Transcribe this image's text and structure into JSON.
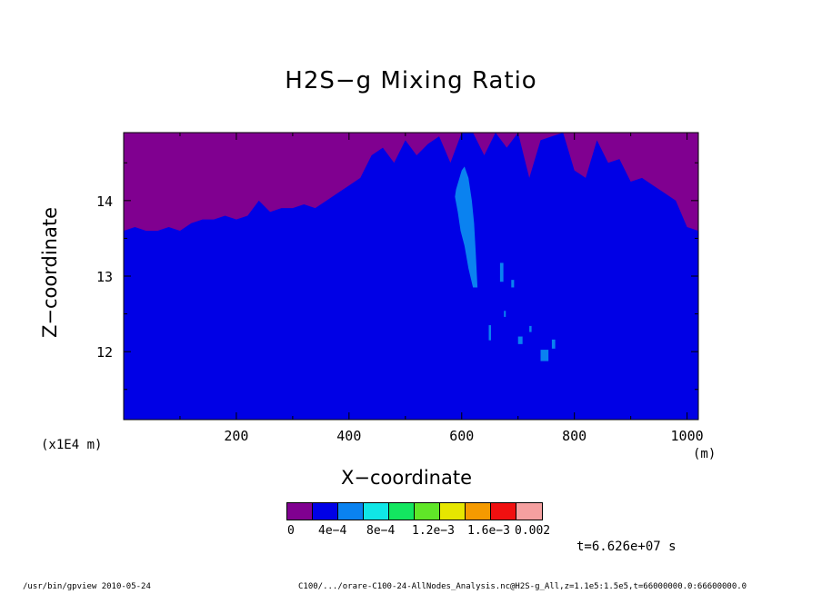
{
  "chart_data": {
    "type": "heatmap",
    "title": "H2S−g Mixing Ratio",
    "xlabel": "X−coordinate",
    "ylabel": "Z−coordinate",
    "x_unit": "(m)",
    "y_scale_note": "(x1E4 m)",
    "xlim": [
      0,
      1020
    ],
    "ylim": [
      11.1,
      14.9
    ],
    "x_ticks": [
      200,
      400,
      600,
      800,
      1000
    ],
    "x_tick_labels": [
      "200",
      "400",
      "600",
      "800",
      "1000"
    ],
    "y_ticks": [
      12,
      13,
      14
    ],
    "y_tick_labels": [
      "12",
      "13",
      "14"
    ],
    "colorbar": {
      "colors": [
        "#800090",
        "#0000e6",
        "#0a82f0",
        "#10e6e6",
        "#13e660",
        "#60e628",
        "#e6e600",
        "#f59a00",
        "#f01010",
        "#f5a0a0"
      ],
      "labels": [
        "0",
        "4e-4",
        "8e-4",
        "1.2e-3",
        "1.6e-3",
        "0.002"
      ],
      "label_text": [
        "0",
        "4e−4",
        "8e−4",
        "1.2e−3",
        "1.6e−3",
        "0.002"
      ]
    },
    "boundary_x": [
      0,
      20,
      40,
      60,
      80,
      100,
      120,
      140,
      160,
      180,
      200,
      220,
      240,
      260,
      280,
      300,
      320,
      340,
      360,
      380,
      400,
      420,
      440,
      460,
      480,
      500,
      520,
      540,
      560,
      580,
      600,
      620,
      640,
      660,
      680,
      700,
      720,
      740,
      760,
      780,
      800,
      820,
      840,
      860,
      880,
      900,
      920,
      940,
      960,
      980,
      1000,
      1020
    ],
    "boundary_z": [
      13.6,
      13.65,
      13.6,
      13.6,
      13.65,
      13.6,
      13.7,
      13.75,
      13.75,
      13.8,
      13.75,
      13.8,
      14.0,
      13.85,
      13.9,
      13.9,
      13.95,
      13.9,
      14.0,
      14.1,
      14.2,
      14.3,
      14.6,
      14.7,
      14.5,
      14.8,
      14.6,
      14.75,
      14.85,
      14.5,
      14.9,
      14.9,
      14.6,
      14.9,
      14.7,
      14.9,
      14.3,
      14.8,
      14.85,
      14.9,
      14.4,
      14.3,
      14.8,
      14.5,
      14.55,
      14.25,
      14.3,
      14.2,
      14.1,
      14.0,
      13.65,
      13.6
    ],
    "high_region": {
      "x": [
        590,
        600,
        605,
        612,
        618,
        622,
        625,
        628,
        620,
        612,
        605,
        598,
        593,
        588
      ],
      "z": [
        14.15,
        14.4,
        14.45,
        14.3,
        14.0,
        13.7,
        13.3,
        12.85,
        12.85,
        13.1,
        13.4,
        13.6,
        13.85,
        14.05
      ]
    },
    "high_patches": [
      {
        "x": 668,
        "z": 13.05,
        "w": 6,
        "h": 0.25
      },
      {
        "x": 688,
        "z": 12.9,
        "w": 5,
        "h": 0.1
      },
      {
        "x": 648,
        "z": 12.25,
        "w": 4,
        "h": 0.2
      },
      {
        "x": 700,
        "z": 12.15,
        "w": 8,
        "h": 0.1
      },
      {
        "x": 740,
        "z": 11.95,
        "w": 14,
        "h": 0.15
      },
      {
        "x": 760,
        "z": 12.1,
        "w": 6,
        "h": 0.12
      },
      {
        "x": 720,
        "z": 12.3,
        "w": 4,
        "h": 0.08
      },
      {
        "x": 675,
        "z": 12.5,
        "w": 3,
        "h": 0.08
      }
    ]
  },
  "time_label": "t=6.626e+07 s",
  "footer": {
    "left": "/usr/bin/gpview  2010-05-24",
    "right": "C100/.../orare-C100-24-AllNodes_Analysis.nc@H2S-g_All,z=1.1e5:1.5e5,t=66000000.0:66600000.0"
  }
}
